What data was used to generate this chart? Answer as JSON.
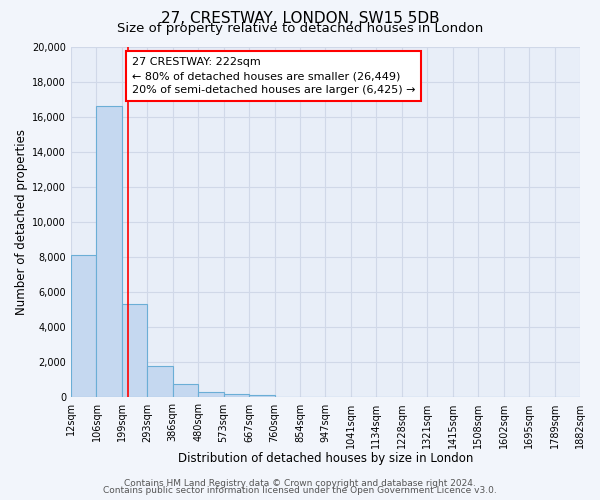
{
  "title": "27, CRESTWAY, LONDON, SW15 5DB",
  "subtitle": "Size of property relative to detached houses in London",
  "xlabel": "Distribution of detached houses by size in London",
  "ylabel": "Number of detached properties",
  "bar_edges": [
    12,
    106,
    199,
    293,
    386,
    480,
    573,
    667,
    760,
    854,
    947,
    1041,
    1134,
    1228,
    1321,
    1415,
    1508,
    1602,
    1695,
    1789,
    1882
  ],
  "bar_heights": [
    8100,
    16600,
    5300,
    1800,
    750,
    300,
    200,
    150,
    0,
    0,
    0,
    0,
    0,
    0,
    0,
    0,
    0,
    0,
    0,
    0
  ],
  "bar_color": "#c5d8f0",
  "bar_edge_color": "#6baed6",
  "property_line_x": 222,
  "property_line_color": "red",
  "annotation_title": "27 CRESTWAY: 222sqm",
  "annotation_line1": "← 80% of detached houses are smaller (26,449)",
  "annotation_line2": "20% of semi-detached houses are larger (6,425) →",
  "ylim": [
    0,
    20000
  ],
  "yticks": [
    0,
    2000,
    4000,
    6000,
    8000,
    10000,
    12000,
    14000,
    16000,
    18000,
    20000
  ],
  "xtick_labels": [
    "12sqm",
    "106sqm",
    "199sqm",
    "293sqm",
    "386sqm",
    "480sqm",
    "573sqm",
    "667sqm",
    "760sqm",
    "854sqm",
    "947sqm",
    "1041sqm",
    "1134sqm",
    "1228sqm",
    "1321sqm",
    "1415sqm",
    "1508sqm",
    "1602sqm",
    "1695sqm",
    "1789sqm",
    "1882sqm"
  ],
  "footer_line1": "Contains HM Land Registry data © Crown copyright and database right 2024.",
  "footer_line2": "Contains public sector information licensed under the Open Government Licence v3.0.",
  "bg_color": "#f2f5fb",
  "plot_bg_color": "#e8eef8",
  "grid_color": "#d0d8e8",
  "title_fontsize": 11,
  "subtitle_fontsize": 9.5,
  "axis_label_fontsize": 8.5,
  "tick_fontsize": 7,
  "footer_fontsize": 6.5,
  "annotation_fontsize": 8
}
